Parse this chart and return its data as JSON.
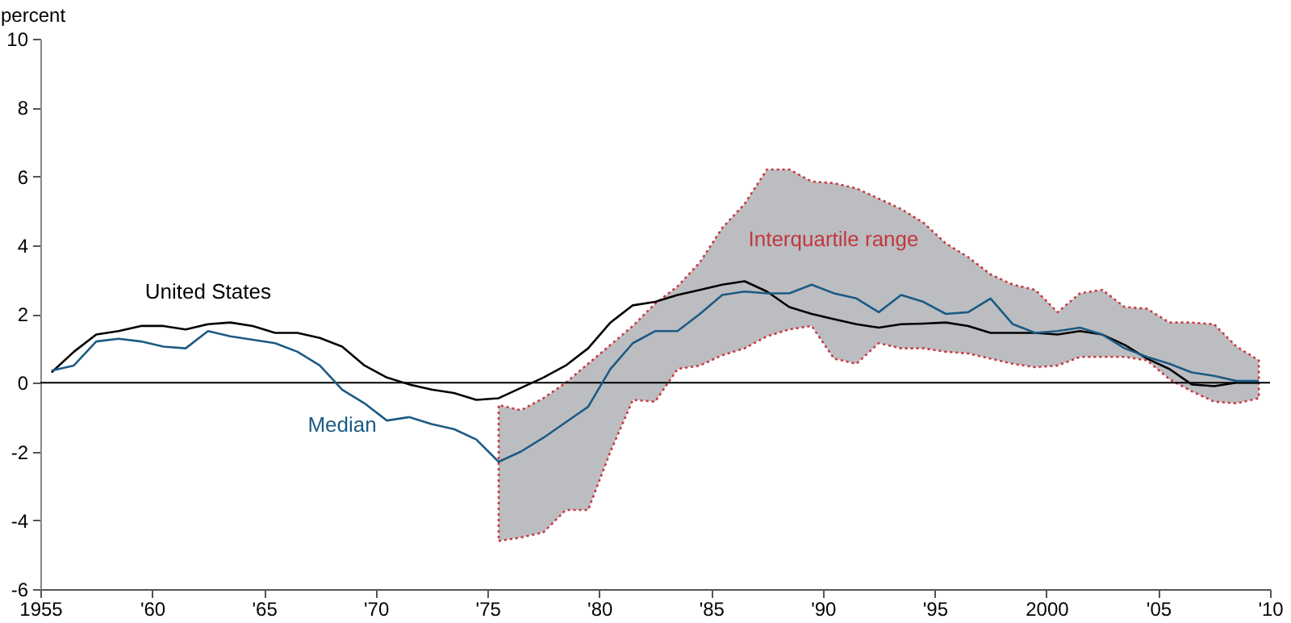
{
  "chart_data": {
    "type": "line",
    "ylabel": "percent",
    "x": [
      1955.5,
      1956.5,
      1957.5,
      1958.5,
      1959.5,
      1960.5,
      1961.5,
      1962.5,
      1963.5,
      1964.5,
      1965.5,
      1966.5,
      1967.5,
      1968.5,
      1969.5,
      1970.5,
      1971.5,
      1972.5,
      1973.5,
      1974.5,
      1975.5,
      1976.5,
      1977.5,
      1978.5,
      1979.5,
      1980.5,
      1981.5,
      1982.5,
      1983.5,
      1984.5,
      1985.5,
      1986.5,
      1987.5,
      1988.5,
      1989.5,
      1990.5,
      1991.5,
      1992.5,
      1993.5,
      1994.5,
      1995.5,
      1996.5,
      1997.5,
      1998.5,
      1999.5,
      2000.5,
      2001.5,
      2002.5,
      2003.5,
      2004.5,
      2005.5,
      2006.5,
      2007.5,
      2008.5,
      2009.5
    ],
    "series": [
      {
        "name": "United States",
        "color": "#000000",
        "values": [
          0.3,
          0.9,
          1.4,
          1.5,
          1.65,
          1.65,
          1.55,
          1.7,
          1.75,
          1.65,
          1.45,
          1.45,
          1.3,
          1.05,
          0.5,
          0.15,
          -0.05,
          -0.2,
          -0.3,
          -0.5,
          -0.45,
          -0.15,
          0.15,
          0.5,
          1.0,
          1.75,
          2.25,
          2.35,
          2.55,
          2.7,
          2.85,
          2.95,
          2.65,
          2.2,
          2.0,
          1.85,
          1.7,
          1.6,
          1.7,
          1.72,
          1.75,
          1.65,
          1.45,
          1.45,
          1.45,
          1.4,
          1.5,
          1.4,
          1.1,
          0.7,
          0.4,
          -0.05,
          -0.1,
          0.0,
          0.0
        ]
      },
      {
        "name": "Median",
        "color": "#1c5a85",
        "values": [
          0.35,
          0.5,
          1.2,
          1.28,
          1.2,
          1.05,
          1.0,
          1.5,
          1.35,
          1.25,
          1.15,
          0.9,
          0.5,
          -0.2,
          -0.6,
          -1.1,
          -1.0,
          -1.2,
          -1.35,
          -1.65,
          -2.3,
          -2.0,
          -1.6,
          -1.15,
          -0.7,
          0.4,
          1.15,
          1.5,
          1.5,
          2.0,
          2.55,
          2.65,
          2.6,
          2.6,
          2.85,
          2.6,
          2.45,
          2.05,
          2.55,
          2.35,
          2.0,
          2.05,
          2.45,
          1.7,
          1.45,
          1.5,
          1.6,
          1.4,
          1.0,
          0.75,
          0.55,
          0.3,
          0.2,
          0.05,
          0.05
        ],
        "lower": [
          null,
          null,
          null,
          null,
          null,
          null,
          null,
          null,
          null,
          null,
          null,
          null,
          null,
          null,
          null,
          null,
          null,
          null,
          null,
          null,
          -4.6,
          -4.5,
          -4.35,
          -3.7,
          -3.7,
          -2.0,
          -0.5,
          -0.55,
          0.4,
          0.5,
          0.8,
          1.0,
          1.35,
          1.55,
          1.65,
          0.7,
          0.55,
          1.15,
          1.0,
          1.0,
          0.9,
          0.85,
          0.7,
          0.55,
          0.45,
          0.5,
          0.75,
          0.75,
          0.75,
          0.65,
          0.1,
          -0.25,
          -0.55,
          -0.6,
          -0.45
        ],
        "upper": [
          null,
          null,
          null,
          null,
          null,
          null,
          null,
          null,
          null,
          null,
          null,
          null,
          null,
          null,
          null,
          null,
          null,
          null,
          null,
          null,
          -0.65,
          -0.8,
          -0.45,
          0.0,
          0.55,
          1.1,
          1.65,
          2.3,
          2.8,
          3.5,
          4.5,
          5.2,
          6.2,
          6.2,
          5.85,
          5.8,
          5.65,
          5.35,
          5.05,
          4.65,
          4.05,
          3.65,
          3.15,
          2.85,
          2.7,
          2.05,
          2.6,
          2.7,
          2.2,
          2.15,
          1.75,
          1.75,
          1.7,
          1.05,
          0.65
        ]
      }
    ],
    "annotations": [
      "Interquartile range"
    ],
    "ref_lines": [
      {
        "axis": "y",
        "value": 0
      }
    ],
    "xlim": [
      1955,
      2010
    ],
    "xticks": [
      {
        "value": 1955,
        "label": "1955"
      },
      {
        "value": 1960,
        "label": "'60"
      },
      {
        "value": 1965,
        "label": "'65"
      },
      {
        "value": 1970,
        "label": "'70"
      },
      {
        "value": 1975,
        "label": "'75"
      },
      {
        "value": 1980,
        "label": "'80"
      },
      {
        "value": 1985,
        "label": "'85"
      },
      {
        "value": 1990,
        "label": "'90"
      },
      {
        "value": 1995,
        "label": "'95"
      },
      {
        "value": 2000,
        "label": "2000"
      },
      {
        "value": 2005,
        "label": "'05"
      },
      {
        "value": 2010,
        "label": "'10"
      }
    ],
    "ylim": [
      -6,
      10
    ],
    "yticks": [
      -6,
      -4,
      -2,
      0,
      2,
      4,
      6,
      8,
      10
    ],
    "grid": false,
    "marker": "none",
    "line_style": "solid"
  }
}
